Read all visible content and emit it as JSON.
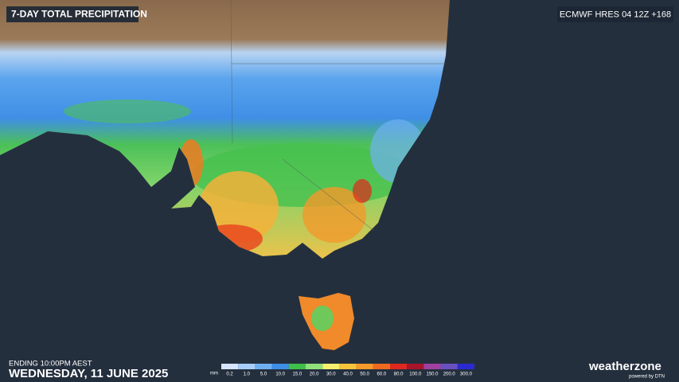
{
  "header": {
    "title": "7-DAY TOTAL PRECIPITATION",
    "model": "ECMWF HRES 04 12Z +168"
  },
  "footer": {
    "ending": "ENDING 10:00PM AEST",
    "date": "WEDNESDAY, 11 JUNE 2025",
    "brand": "weatherzone",
    "powered": "powered by DTN"
  },
  "legend": {
    "unit": "mm",
    "items": [
      {
        "label": "0.2",
        "color": "#d6e6ff"
      },
      {
        "label": "1.0",
        "color": "#a8cdfb"
      },
      {
        "label": "5.0",
        "color": "#6fb0f3"
      },
      {
        "label": "10.0",
        "color": "#3d8ee6"
      },
      {
        "label": "15.0",
        "color": "#3fbf4a"
      },
      {
        "label": "20.0",
        "color": "#8fe07a"
      },
      {
        "label": "30.0",
        "color": "#f6f06e"
      },
      {
        "label": "40.0",
        "color": "#f7c43c"
      },
      {
        "label": "50.0",
        "color": "#f79a2a"
      },
      {
        "label": "60.0",
        "color": "#ef6a1e"
      },
      {
        "label": "80.0",
        "color": "#e0281e"
      },
      {
        "label": "100.0",
        "color": "#a8142a"
      },
      {
        "label": "150.0",
        "color": "#a040a0"
      },
      {
        "label": "200.0",
        "color": "#6a4fbf"
      },
      {
        "label": "300.0",
        "color": "#2a2ad0"
      }
    ]
  }
}
